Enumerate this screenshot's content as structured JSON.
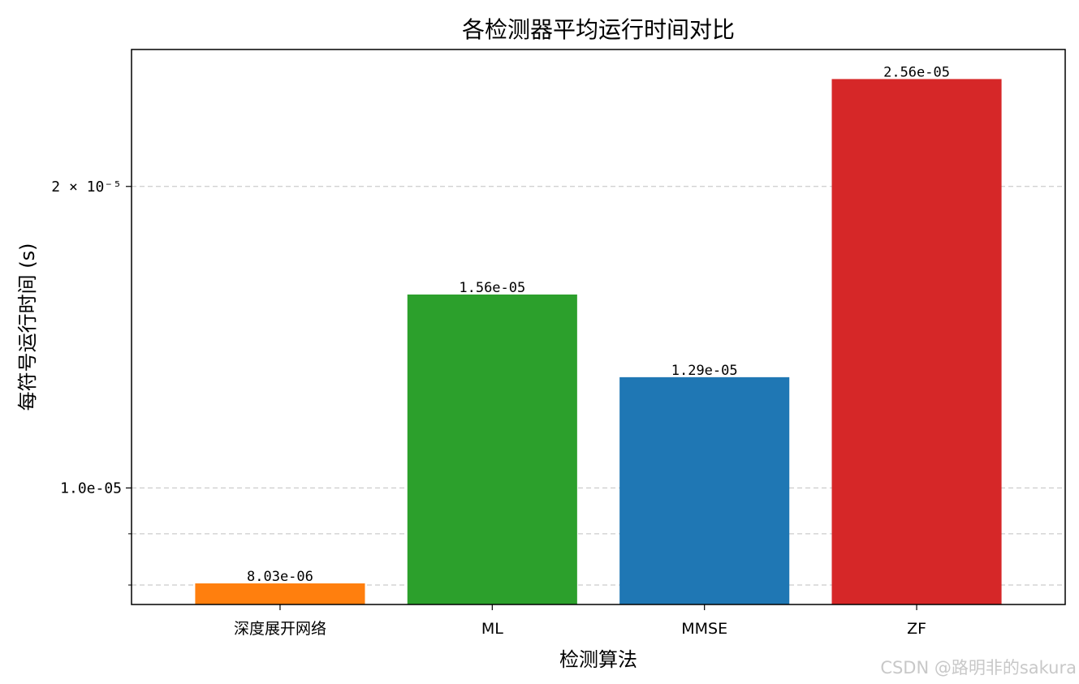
{
  "chart_data": {
    "type": "bar",
    "title": "各检测器平均运行时间对比",
    "xlabel": "检测算法",
    "ylabel": "每符号运行时间 (s)",
    "yscale": "log",
    "ylim": [
      7.65e-06,
      2.74e-05
    ],
    "categories": [
      "深度展开网络",
      "ML",
      "MMSE",
      "ZF"
    ],
    "values": [
      8.03e-06,
      1.56e-05,
      1.29e-05,
      2.56e-05
    ],
    "value_labels": [
      "8.03e-06",
      "1.56e-05",
      "1.29e-05",
      "2.56e-05"
    ],
    "colors": [
      "#ff7f0e",
      "#2ca02c",
      "#1f77b4",
      "#d62728"
    ],
    "major_ticks": [
      {
        "value": 1e-05,
        "label": "1.0e-05"
      },
      {
        "value": 2e-05,
        "label": "2 × 10⁻⁵"
      }
    ],
    "minor_ticks": [
      8e-06,
      9e-06
    ],
    "grid": "y-dashed",
    "legend": "none"
  },
  "watermark": "CSDN @路明非的sakura"
}
